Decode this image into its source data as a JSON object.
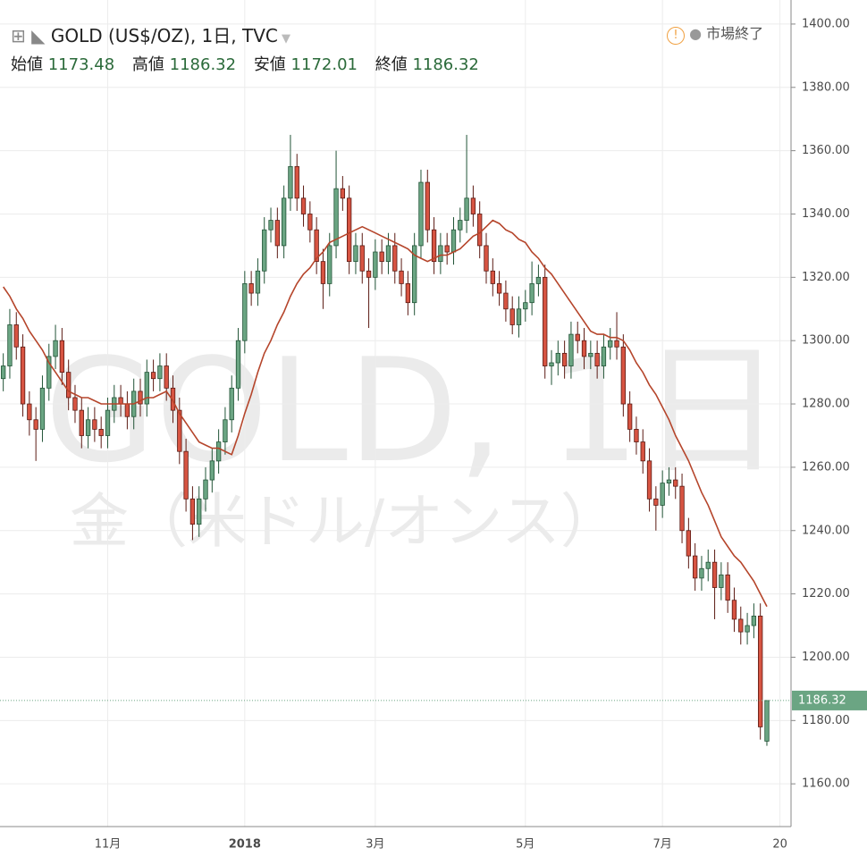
{
  "header": {
    "symbol": "GOLD (US$/OZ), 1日, TVC",
    "status": "市場終了",
    "open_label": "始値",
    "high_label": "高値",
    "low_label": "安値",
    "close_label": "終値"
  },
  "watermark": {
    "line1": "GOLD, 1日",
    "line2": "金（米ドル/オンス）"
  },
  "chart_data": {
    "type": "candlestick",
    "categories": [
      null,
      null,
      null,
      null,
      null,
      null,
      null,
      null,
      null,
      null,
      null,
      null,
      null,
      null,
      null,
      null,
      "11月",
      null,
      null,
      null,
      null,
      null,
      null,
      null,
      null,
      null,
      null,
      null,
      null,
      null,
      null,
      null,
      null,
      null,
      null,
      null,
      null,
      "2018",
      null,
      null,
      null,
      null,
      null,
      null,
      null,
      null,
      null,
      null,
      null,
      null,
      null,
      null,
      null,
      null,
      null,
      null,
      null,
      "3月",
      null,
      null,
      null,
      null,
      null,
      null,
      null,
      null,
      null,
      null,
      null,
      null,
      null,
      null,
      null,
      null,
      null,
      null,
      null,
      null,
      null,
      null,
      "5月",
      null,
      null,
      null,
      null,
      null,
      null,
      null,
      null,
      null,
      null,
      null,
      null,
      null,
      null,
      null,
      null,
      null,
      null,
      null,
      null,
      "7月",
      null,
      null,
      null,
      null,
      null,
      null,
      null,
      null,
      null,
      null,
      null,
      null,
      null,
      null,
      null,
      null
    ],
    "open": [
      1288,
      1292,
      1305,
      1298,
      1280,
      1275,
      1272,
      1285,
      1295,
      1300,
      1290,
      1282,
      1278,
      1270,
      1275,
      1272,
      1270,
      1278,
      1282,
      1280,
      1276,
      1284,
      1280,
      1290,
      1288,
      1292,
      1285,
      1278,
      1265,
      1250,
      1242,
      1250,
      1256,
      1262,
      1268,
      1275,
      1285,
      1300,
      1318,
      1315,
      1322,
      1335,
      1338,
      1330,
      1345,
      1355,
      1345,
      1340,
      1335,
      1325,
      1318,
      1330,
      1348,
      1345,
      1325,
      1330,
      1322,
      1320,
      1328,
      1325,
      1330,
      1322,
      1318,
      1312,
      1330,
      1350,
      1335,
      1325,
      1330,
      1328,
      1335,
      1338,
      1345,
      1340,
      1330,
      1322,
      1318,
      1315,
      1310,
      1305,
      1310,
      1312,
      1318,
      1320,
      1292,
      1293,
      1296,
      1292,
      1302,
      1300,
      1295,
      1296,
      1292,
      1298,
      1300,
      1298,
      1280,
      1272,
      1268,
      1262,
      1250,
      1248,
      1255,
      1256,
      1254,
      1240,
      1232,
      1225,
      1228,
      1230,
      1222,
      1226,
      1218,
      1212,
      1208,
      1210,
      1213,
      1173.48
    ],
    "high": [
      1296,
      1310,
      1309,
      1302,
      1284,
      1279,
      1289,
      1299,
      1305,
      1304,
      1294,
      1286,
      1282,
      1279,
      1279,
      1276,
      1282,
      1286,
      1286,
      1284,
      1288,
      1288,
      1294,
      1294,
      1296,
      1296,
      1289,
      1282,
      1269,
      1254,
      1254,
      1260,
      1266,
      1272,
      1279,
      1289,
      1304,
      1322,
      1322,
      1326,
      1339,
      1342,
      1342,
      1349,
      1365,
      1359,
      1349,
      1344,
      1339,
      1329,
      1334,
      1360,
      1352,
      1349,
      1334,
      1334,
      1326,
      1332,
      1332,
      1334,
      1334,
      1326,
      1322,
      1334,
      1354,
      1354,
      1339,
      1334,
      1334,
      1339,
      1342,
      1365,
      1349,
      1344,
      1334,
      1326,
      1322,
      1319,
      1314,
      1314,
      1316,
      1325,
      1324,
      1324,
      1297,
      1300,
      1300,
      1306,
      1306,
      1304,
      1300,
      1300,
      1302,
      1304,
      1309,
      1302,
      1284,
      1276,
      1272,
      1266,
      1254,
      1259,
      1260,
      1260,
      1258,
      1244,
      1236,
      1232,
      1234,
      1234,
      1230,
      1230,
      1222,
      1216,
      1214,
      1217,
      1217,
      1186.32
    ],
    "low": [
      1284,
      1288,
      1294,
      1276,
      1270,
      1262,
      1268,
      1281,
      1291,
      1286,
      1278,
      1274,
      1266,
      1266,
      1268,
      1266,
      1266,
      1274,
      1276,
      1272,
      1272,
      1276,
      1276,
      1284,
      1284,
      1281,
      1274,
      1261,
      1246,
      1237,
      1238,
      1246,
      1252,
      1258,
      1264,
      1271,
      1281,
      1296,
      1311,
      1311,
      1318,
      1331,
      1326,
      1326,
      1341,
      1341,
      1336,
      1331,
      1321,
      1310,
      1314,
      1326,
      1341,
      1321,
      1321,
      1318,
      1304,
      1316,
      1321,
      1321,
      1318,
      1314,
      1308,
      1308,
      1326,
      1331,
      1321,
      1321,
      1324,
      1324,
      1331,
      1334,
      1336,
      1326,
      1318,
      1314,
      1311,
      1306,
      1302,
      1301,
      1306,
      1308,
      1314,
      1288,
      1286,
      1289,
      1288,
      1288,
      1296,
      1291,
      1291,
      1288,
      1288,
      1294,
      1294,
      1276,
      1268,
      1264,
      1258,
      1246,
      1240,
      1244,
      1251,
      1250,
      1236,
      1228,
      1221,
      1221,
      1224,
      1212,
      1218,
      1214,
      1208,
      1204,
      1204,
      1206,
      1174,
      1172.01
    ],
    "close": [
      1292,
      1305,
      1298,
      1280,
      1275,
      1272,
      1285,
      1295,
      1300,
      1290,
      1282,
      1278,
      1270,
      1275,
      1272,
      1270,
      1278,
      1282,
      1280,
      1276,
      1284,
      1280,
      1290,
      1288,
      1292,
      1285,
      1278,
      1265,
      1250,
      1242,
      1250,
      1256,
      1262,
      1268,
      1275,
      1285,
      1300,
      1318,
      1315,
      1322,
      1335,
      1338,
      1330,
      1345,
      1355,
      1345,
      1340,
      1335,
      1325,
      1318,
      1330,
      1348,
      1345,
      1325,
      1330,
      1322,
      1320,
      1328,
      1325,
      1330,
      1322,
      1318,
      1312,
      1330,
      1350,
      1335,
      1325,
      1330,
      1328,
      1335,
      1338,
      1345,
      1340,
      1330,
      1322,
      1318,
      1315,
      1310,
      1305,
      1310,
      1312,
      1318,
      1320,
      1292,
      1293,
      1296,
      1292,
      1302,
      1300,
      1295,
      1296,
      1292,
      1298,
      1300,
      1298,
      1280,
      1272,
      1268,
      1262,
      1250,
      1248,
      1255,
      1256,
      1254,
      1240,
      1232,
      1225,
      1228,
      1230,
      1222,
      1226,
      1218,
      1212,
      1208,
      1210,
      1213,
      1178,
      1186.32
    ],
    "line": {
      "color": "#b5452b",
      "values": [
        1317,
        1314,
        1310,
        1307,
        1303,
        1300,
        1297,
        1293,
        1290,
        1287,
        1284,
        1283,
        1282,
        1282,
        1281,
        1280,
        1280,
        1280,
        1280,
        1280,
        1280,
        1281,
        1282,
        1282,
        1283,
        1284,
        1281,
        1277,
        1274,
        1271,
        1268,
        1267,
        1266,
        1266,
        1265,
        1264,
        1270,
        1277,
        1283,
        1290,
        1296,
        1300,
        1305,
        1309,
        1314,
        1318,
        1321,
        1323,
        1326,
        1328,
        1331,
        1332,
        1333,
        1334,
        1335,
        1336,
        1335,
        1334,
        1333,
        1332,
        1331,
        1330,
        1329,
        1327,
        1326,
        1325,
        1326,
        1327,
        1327,
        1328,
        1329,
        1331,
        1333,
        1334,
        1336,
        1338,
        1337,
        1335,
        1334,
        1332,
        1331,
        1328,
        1326,
        1323,
        1321,
        1318,
        1315,
        1312,
        1309,
        1306,
        1303,
        1302,
        1302,
        1301,
        1301,
        1300,
        1297,
        1293,
        1290,
        1286,
        1283,
        1279,
        1275,
        1270,
        1266,
        1262,
        1257,
        1252,
        1248,
        1243,
        1238,
        1235,
        1232,
        1230,
        1227,
        1224,
        1220,
        1216
      ]
    },
    "up_color": "#6ba583",
    "down_color": "#d75442",
    "xlim": [
      -0.5,
      120.7
    ],
    "xticks": [
      {
        "value": 119,
        "label": "20"
      }
    ],
    "ylim": [
      1146.5,
      1407.6
    ],
    "yticks": [
      {
        "value": 1160,
        "label": "1160.00"
      },
      {
        "value": 1180,
        "label": "1180.00"
      },
      {
        "value": 1200,
        "label": "1200.00"
      },
      {
        "value": 1220,
        "label": "1220.00"
      },
      {
        "value": 1240,
        "label": "1240.00"
      },
      {
        "value": 1260,
        "label": "1260.00"
      },
      {
        "value": 1280,
        "label": "1280.00"
      },
      {
        "value": 1300,
        "label": "1300.00"
      },
      {
        "value": 1320,
        "label": "1320.00"
      },
      {
        "value": 1340,
        "label": "1340.00"
      },
      {
        "value": 1360,
        "label": "1360.00"
      },
      {
        "value": 1380,
        "label": "1380.00"
      },
      {
        "value": 1400,
        "label": "1400.00"
      }
    ],
    "grid": true
  }
}
